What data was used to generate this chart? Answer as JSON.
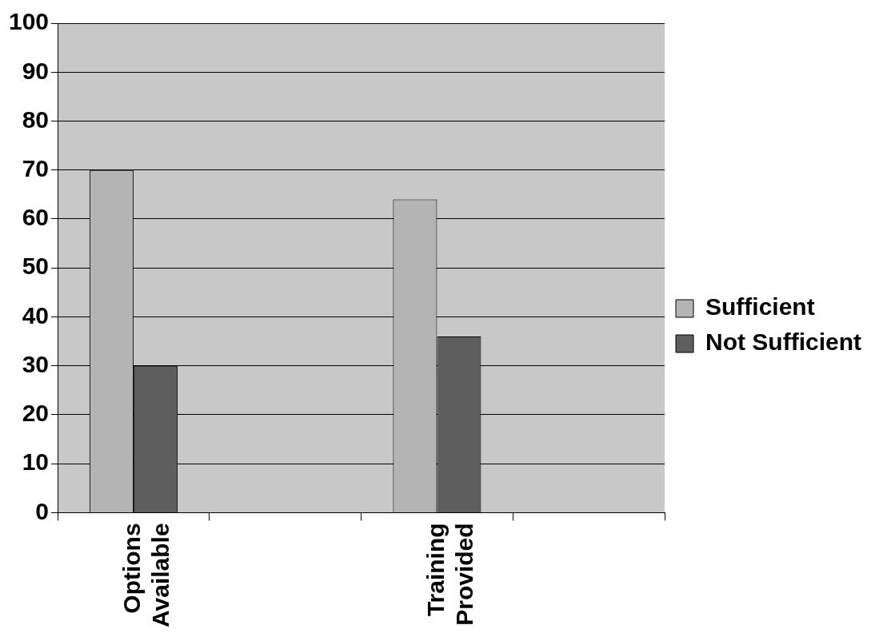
{
  "chart_data": {
    "type": "bar",
    "categories": [
      "Options Available",
      null,
      "Training Provided",
      null
    ],
    "series": [
      {
        "name": "Sufficient",
        "color": "#b4b4b4",
        "values": [
          70,
          null,
          64,
          null
        ]
      },
      {
        "name": "Not Sufficient",
        "color": "#5e5e5e",
        "values": [
          30,
          null,
          36,
          null
        ]
      }
    ],
    "ylim": [
      0,
      100
    ],
    "yticks": [
      0,
      10,
      20,
      30,
      40,
      50,
      60,
      70,
      80,
      90,
      100
    ],
    "grid": "y",
    "legend": "right"
  }
}
